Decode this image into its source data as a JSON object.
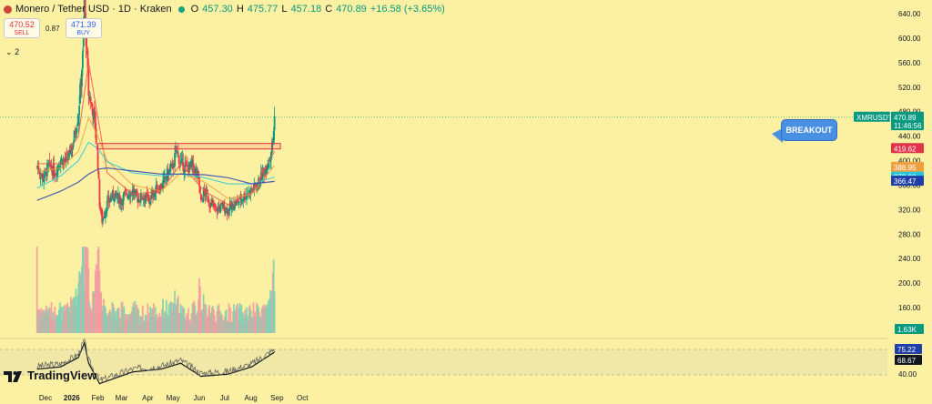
{
  "header": {
    "symbol": "Monero / Tether USD · 1D · Kraken",
    "open_label": "O",
    "open": "457.30",
    "high_label": "H",
    "high": "475.77",
    "low_label": "L",
    "low": "457.18",
    "close_label": "C",
    "close": "470.89",
    "change": "+16.58 (+3.65%)"
  },
  "trade": {
    "sell_price": "470.52",
    "sell_label": "SELL",
    "spread": "0.87",
    "buy_price": "471.39",
    "buy_label": "BUY"
  },
  "indicator_count": "2",
  "brand": "TradingView",
  "annotation": {
    "callout": "BREAKOUT"
  },
  "colors": {
    "background": "#fcf1a3",
    "up": "#089981",
    "down": "#f23645",
    "ma_short": "#f2574a",
    "ma_mid": "#f0a040",
    "ma_long": "#3a4bb0",
    "ma_teal": "#26c6da",
    "resistance": "#e0344a",
    "rsi_line": "#131722"
  },
  "chart_data": {
    "type": "candlestick",
    "symbol": "XMRUSDT",
    "timeframe": "1D",
    "x_ticks": [
      "Dec",
      "2026",
      "Feb",
      "Mar",
      "Apr",
      "May",
      "Jun",
      "Jul",
      "Aug",
      "Sep",
      "Oct"
    ],
    "y_ticks": [
      "640.00",
      "600.00",
      "560.00",
      "520.00",
      "480.00",
      "440.00",
      "400.00",
      "360.00",
      "320.00",
      "280.00",
      "240.00",
      "200.00",
      "160.00"
    ],
    "ylim": [
      150,
      660
    ],
    "price_path": [
      [
        "Nov 21",
        390
      ],
      [
        "Nov 28",
        372
      ],
      [
        "Dec 5",
        392
      ],
      [
        "Dec 12",
        380
      ],
      [
        "Dec 19",
        402
      ],
      [
        "Dec 26",
        398
      ],
      [
        "Jan 2",
        425
      ],
      [
        "Jan 9",
        478
      ],
      [
        "Jan 14",
        570
      ],
      [
        "Jan 16",
        660
      ],
      [
        "Jan 21",
        510
      ],
      [
        "Jan 28",
        470
      ],
      [
        "Feb 1",
        395
      ],
      [
        "Feb 3",
        330
      ],
      [
        "Feb 6",
        302
      ],
      [
        "Feb 12",
        330
      ],
      [
        "Feb 20",
        345
      ],
      [
        "Feb 28",
        335
      ],
      [
        "Mar 6",
        345
      ],
      [
        "Mar 14",
        350
      ],
      [
        "Mar 20",
        338
      ],
      [
        "Mar 27",
        342
      ],
      [
        "Apr 3",
        335
      ],
      [
        "Apr 10",
        352
      ],
      [
        "Apr 17",
        358
      ],
      [
        "Apr 24",
        378
      ],
      [
        "May 1",
        392
      ],
      [
        "May 5",
        418
      ],
      [
        "May 10",
        395
      ],
      [
        "May 17",
        388
      ],
      [
        "May 24",
        392
      ],
      [
        "May 31",
        372
      ],
      [
        "Jun 3",
        330
      ],
      [
        "Jun 7",
        350
      ],
      [
        "Jun 14",
        330
      ],
      [
        "Jun 21",
        320
      ],
      [
        "Jun 28",
        325
      ],
      [
        "Jul 5",
        320
      ],
      [
        "Jul 12",
        328
      ],
      [
        "Jul 19",
        336
      ],
      [
        "Jul 26",
        345
      ],
      [
        "Aug 2",
        352
      ],
      [
        "Aug 9",
        362
      ],
      [
        "Aug 16",
        380
      ],
      [
        "Aug 23",
        405
      ],
      [
        "Aug 27",
        430
      ],
      [
        "Aug 29",
        470.89
      ]
    ],
    "moving_averages": [
      {
        "values": [
          [
            "Nov 21",
            395
          ],
          [
            "Dec 19",
            395
          ],
          [
            "Jan 9",
            440
          ],
          [
            "Jan 21",
            560
          ],
          [
            "Feb 1",
            470
          ],
          [
            "Feb 12",
            380
          ],
          [
            "Mar 14",
            345
          ],
          [
            "Apr 17",
            350
          ],
          [
            "May 10",
            395
          ],
          [
            "Jun 7",
            350
          ],
          [
            "Jul 5",
            328
          ],
          [
            "Aug 2",
            348
          ],
          [
            "Aug 29",
            415
          ]
        ]
      },
      {
        "values": [
          [
            "Nov 21",
            382
          ],
          [
            "Dec 19",
            388
          ],
          [
            "Jan 9",
            415
          ],
          [
            "Jan 21",
            470
          ],
          [
            "Feb 1",
            440
          ],
          [
            "Feb 12",
            400
          ],
          [
            "Mar 14",
            360
          ],
          [
            "Apr 17",
            350
          ],
          [
            "May 10",
            380
          ],
          [
            "Jun 7",
            365
          ],
          [
            "Jul 5",
            338
          ],
          [
            "Aug 2",
            345
          ],
          [
            "Aug 29",
            392
          ]
        ]
      },
      {
        "values": [
          [
            "Nov 21",
            355
          ],
          [
            "Dec 19",
            375
          ],
          [
            "Jan 9",
            400
          ],
          [
            "Jan 21",
            430
          ],
          [
            "Feb 1",
            420
          ],
          [
            "Feb 12",
            398
          ],
          [
            "Mar 14",
            380
          ],
          [
            "Apr 17",
            375
          ],
          [
            "May 10",
            378
          ],
          [
            "Jun 7",
            372
          ],
          [
            "Jul 5",
            362
          ],
          [
            "Aug 2",
            362
          ],
          [
            "Aug 29",
            373
          ]
        ]
      },
      {
        "values": [
          [
            "Nov 21",
            335
          ],
          [
            "Dec 19",
            350
          ],
          [
            "Jan 9",
            365
          ],
          [
            "Jan 21",
            378
          ],
          [
            "Feb 1",
            386
          ],
          [
            "Feb 12",
            388
          ],
          [
            "Mar 14",
            383
          ],
          [
            "Apr 17",
            378
          ],
          [
            "May 10",
            378
          ],
          [
            "Jun 7",
            377
          ],
          [
            "Jul 5",
            372
          ],
          [
            "Aug 2",
            362
          ],
          [
            "Aug 29",
            366
          ]
        ]
      }
    ],
    "resistance_zone": {
      "top": 428,
      "bottom": 419,
      "from": "Feb 1",
      "to": "Sep 5"
    },
    "price_labels": [
      {
        "text": "XMRUSDT",
        "value": 470.89,
        "color": "#089981"
      },
      {
        "text": "470.89",
        "value": 470.89,
        "color": "#089981"
      },
      {
        "text": "11:46:56",
        "value": 460,
        "color": "#089981"
      },
      {
        "text": "419.62",
        "value": 419.62,
        "color": "#e0344a"
      },
      {
        "text": "388.95",
        "value": 388.95,
        "color": "#f0a040"
      },
      {
        "text": "372.93",
        "value": 372.93,
        "color": "#26c6da"
      },
      {
        "text": "366.47",
        "value": 366.47,
        "color": "#1f3fa8"
      }
    ],
    "volume_label": "1.63K",
    "rsi": {
      "values": [
        [
          "Nov 21",
          52
        ],
        [
          "Dec 19",
          55
        ],
        [
          "Jan 9",
          68
        ],
        [
          "Jan 16",
          88
        ],
        [
          "Jan 21",
          60
        ],
        [
          "Feb 3",
          32
        ],
        [
          "Mar 14",
          48
        ],
        [
          "Apr 17",
          52
        ],
        [
          "May 10",
          60
        ],
        [
          "Jun 3",
          42
        ],
        [
          "Jul 5",
          45
        ],
        [
          "Aug 2",
          55
        ],
        [
          "Aug 29",
          75.22
        ]
      ],
      "ma_value": 68.67,
      "level_label": "40.00",
      "labels": [
        {
          "text": "75.22",
          "color": "#131722"
        },
        {
          "text": "68.67",
          "color": "#131722"
        }
      ]
    }
  }
}
